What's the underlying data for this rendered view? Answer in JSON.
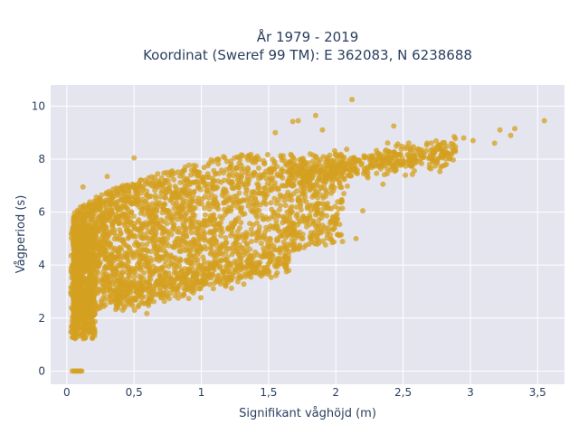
{
  "chart_data": {
    "type": "scatter",
    "title_line1": "År 1979 - 2019",
    "title_line2": "Koordinat (Sweref 99 TM): E 362083, N 6238688",
    "xlabel": "Signifikant våghöjd (m)",
    "ylabel": "Vågperiod (s)",
    "xlim": [
      -0.12,
      3.7
    ],
    "ylim": [
      -0.5,
      10.8
    ],
    "xticks": [
      0,
      0.5,
      1,
      1.5,
      2,
      2.5,
      3,
      3.5
    ],
    "xtick_labels": [
      "0",
      "0,5",
      "1",
      "1,5",
      "2",
      "2,5",
      "3",
      "3,5"
    ],
    "yticks": [
      0,
      2,
      4,
      6,
      8,
      10
    ],
    "ytick_labels": [
      "0",
      "2",
      "4",
      "6",
      "8",
      "10"
    ],
    "grid": true,
    "marker_color": "#d4a020",
    "plot_bg": "#e5e5f0",
    "outliers": [
      {
        "x": 2.12,
        "y": 10.25
      },
      {
        "x": 1.85,
        "y": 9.65
      },
      {
        "x": 1.72,
        "y": 9.45
      },
      {
        "x": 1.68,
        "y": 9.42
      },
      {
        "x": 3.55,
        "y": 9.45
      },
      {
        "x": 3.33,
        "y": 9.15
      },
      {
        "x": 3.22,
        "y": 9.1
      },
      {
        "x": 2.43,
        "y": 9.25
      },
      {
        "x": 2.88,
        "y": 8.85
      },
      {
        "x": 2.95,
        "y": 8.8
      },
      {
        "x": 3.02,
        "y": 8.7
      },
      {
        "x": 3.18,
        "y": 8.6
      },
      {
        "x": 3.3,
        "y": 8.9
      },
      {
        "x": 2.15,
        "y": 5.0
      },
      {
        "x": 1.52,
        "y": 4.15
      },
      {
        "x": 1.62,
        "y": 4.3
      },
      {
        "x": 1.72,
        "y": 4.6
      },
      {
        "x": 0.5,
        "y": 8.05
      },
      {
        "x": 0.3,
        "y": 7.35
      },
      {
        "x": 0.12,
        "y": 6.95
      },
      {
        "x": 1.78,
        "y": 5.75
      },
      {
        "x": 2.06,
        "y": 6.7
      },
      {
        "x": 2.2,
        "y": 6.05
      },
      {
        "x": 2.35,
        "y": 7.05
      },
      {
        "x": 1.63,
        "y": 5.3
      },
      {
        "x": 1.35,
        "y": 3.6
      },
      {
        "x": 2.62,
        "y": 8.35
      },
      {
        "x": 2.75,
        "y": 8.45
      },
      {
        "x": 2.82,
        "y": 8.2
      },
      {
        "x": 1.9,
        "y": 9.1
      },
      {
        "x": 1.55,
        "y": 9.0
      }
    ],
    "zero_row": {
      "x_from": 0.04,
      "x_to": 0.12,
      "y": 0
    }
  }
}
